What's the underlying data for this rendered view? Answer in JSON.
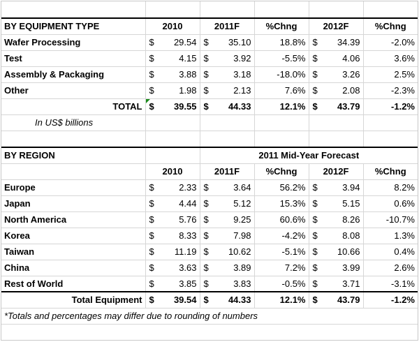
{
  "equipment": {
    "header": {
      "label": "BY EQUIPMENT TYPE",
      "c1": "2010",
      "c2": "2011F",
      "c3": "%Chng",
      "c4": "2012F",
      "c5": "%Chng"
    },
    "rows": [
      {
        "label": "Wafer Processing",
        "v2010": "29.54",
        "v2011": "35.10",
        "chg1": "18.8%",
        "v2012": "34.39",
        "chg2": "-2.0%"
      },
      {
        "label": "Test",
        "v2010": "4.15",
        "v2011": "3.92",
        "chg1": "-5.5%",
        "v2012": "4.06",
        "chg2": "3.6%"
      },
      {
        "label": "Assembly & Packaging",
        "v2010": "3.88",
        "v2011": "3.18",
        "chg1": "-18.0%",
        "v2012": "3.26",
        "chg2": "2.5%"
      },
      {
        "label": "Other",
        "v2010": "1.98",
        "v2011": "2.13",
        "chg1": "7.6%",
        "v2012": "2.08",
        "chg2": "-2.3%"
      }
    ],
    "total": {
      "label": "TOTAL",
      "v2010": "39.55",
      "v2011": "44.33",
      "chg1": "12.1%",
      "v2012": "43.79",
      "chg2": "-1.2%"
    },
    "units_note": "In US$ billions"
  },
  "region": {
    "header": {
      "label": "BY REGION",
      "forecast_title": "2011 Mid-Year Forecast",
      "c1": "2010",
      "c2": "2011F",
      "c3": "%Chng",
      "c4": "2012F",
      "c5": "%Chng"
    },
    "rows": [
      {
        "label": "Europe",
        "v2010": "2.33",
        "v2011": "3.64",
        "chg1": "56.2%",
        "v2012": "3.94",
        "chg2": "8.2%"
      },
      {
        "label": "Japan",
        "v2010": "4.44",
        "v2011": "5.12",
        "chg1": "15.3%",
        "v2012": "5.15",
        "chg2": "0.6%"
      },
      {
        "label": "North America",
        "v2010": "5.76",
        "v2011": "9.25",
        "chg1": "60.6%",
        "v2012": "8.26",
        "chg2": "-10.7%"
      },
      {
        "label": "Korea",
        "v2010": "8.33",
        "v2011": "7.98",
        "chg1": "-4.2%",
        "v2012": "8.08",
        "chg2": "1.3%"
      },
      {
        "label": "Taiwan",
        "v2010": "11.19",
        "v2011": "10.62",
        "chg1": "-5.1%",
        "v2012": "10.66",
        "chg2": "0.4%"
      },
      {
        "label": "China",
        "v2010": "3.63",
        "v2011": "3.89",
        "chg1": "7.2%",
        "v2012": "3.99",
        "chg2": "2.6%"
      },
      {
        "label": "Rest of World",
        "v2010": "3.85",
        "v2011": "3.83",
        "chg1": "-0.5%",
        "v2012": "3.71",
        "chg2": "-3.1%"
      }
    ],
    "total": {
      "label": "Total Equipment",
      "v2010": "39.54",
      "v2011": "44.33",
      "chg1": "12.1%",
      "v2012": "43.79",
      "chg2": "-1.2%"
    }
  },
  "currency_symbol": "$",
  "footnote": "*Totals and percentages may differ due to rounding of numbers"
}
